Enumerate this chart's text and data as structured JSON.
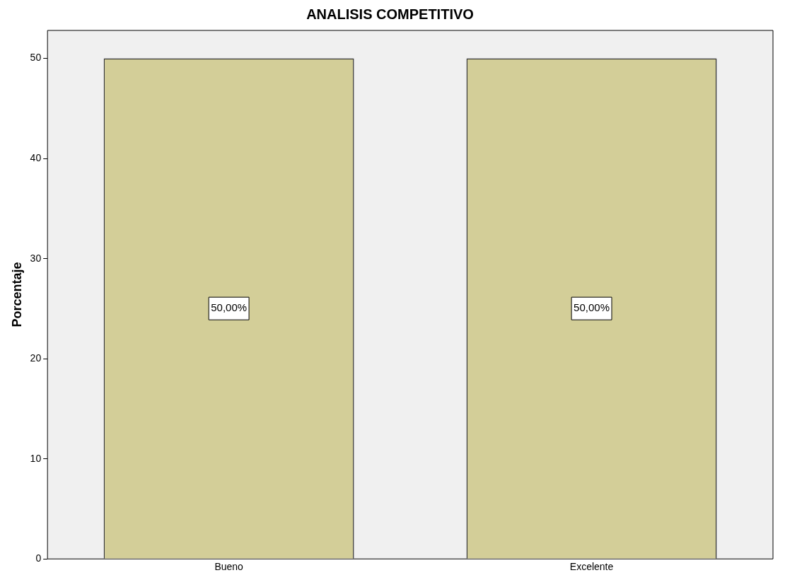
{
  "chart_data": {
    "type": "bar",
    "title": "ANALISIS COMPETITIVO",
    "ylabel": "Porcentaje",
    "categories": [
      "Bueno",
      "Excelente"
    ],
    "values": [
      50,
      50
    ],
    "color": "#d3ce98",
    "value_labels": [
      "50,00%",
      "50,00%"
    ],
    "ylim": [
      0,
      52.8
    ],
    "yticks": [
      0,
      10,
      20,
      30,
      40,
      50
    ],
    "grid": false,
    "legend": false
  }
}
